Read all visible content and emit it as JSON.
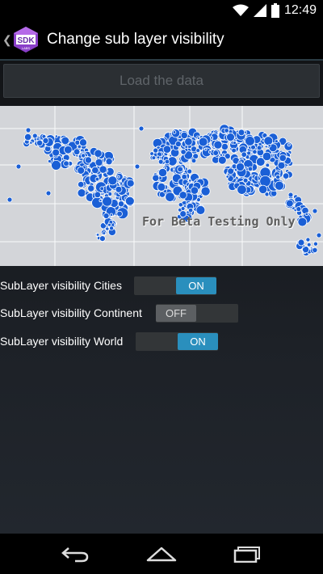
{
  "status_bar": {
    "time": "12:49",
    "icons": [
      "wifi-icon",
      "signal-icon",
      "battery-icon"
    ]
  },
  "action_bar": {
    "title": "Change sub layer visibility",
    "logo_text": "SDK",
    "logo_subtext": "LABS"
  },
  "load_button": {
    "label": "Load the data",
    "enabled": false
  },
  "map": {
    "watermark": "For Beta Testing Only",
    "point_color": "#1a5fd6",
    "background_color": "#d3d5d9"
  },
  "sublayers": [
    {
      "label": "SubLayer visibility Cities",
      "state": "ON"
    },
    {
      "label": "SubLayer visibility Continent",
      "state": "OFF"
    },
    {
      "label": "SubLayer visibility World",
      "state": "ON"
    }
  ],
  "nav_bar": {
    "icons": [
      "back-icon",
      "home-icon",
      "recents-icon"
    ]
  },
  "colors": {
    "accent": "#2a8fbd",
    "divider": "#2a3b44"
  }
}
